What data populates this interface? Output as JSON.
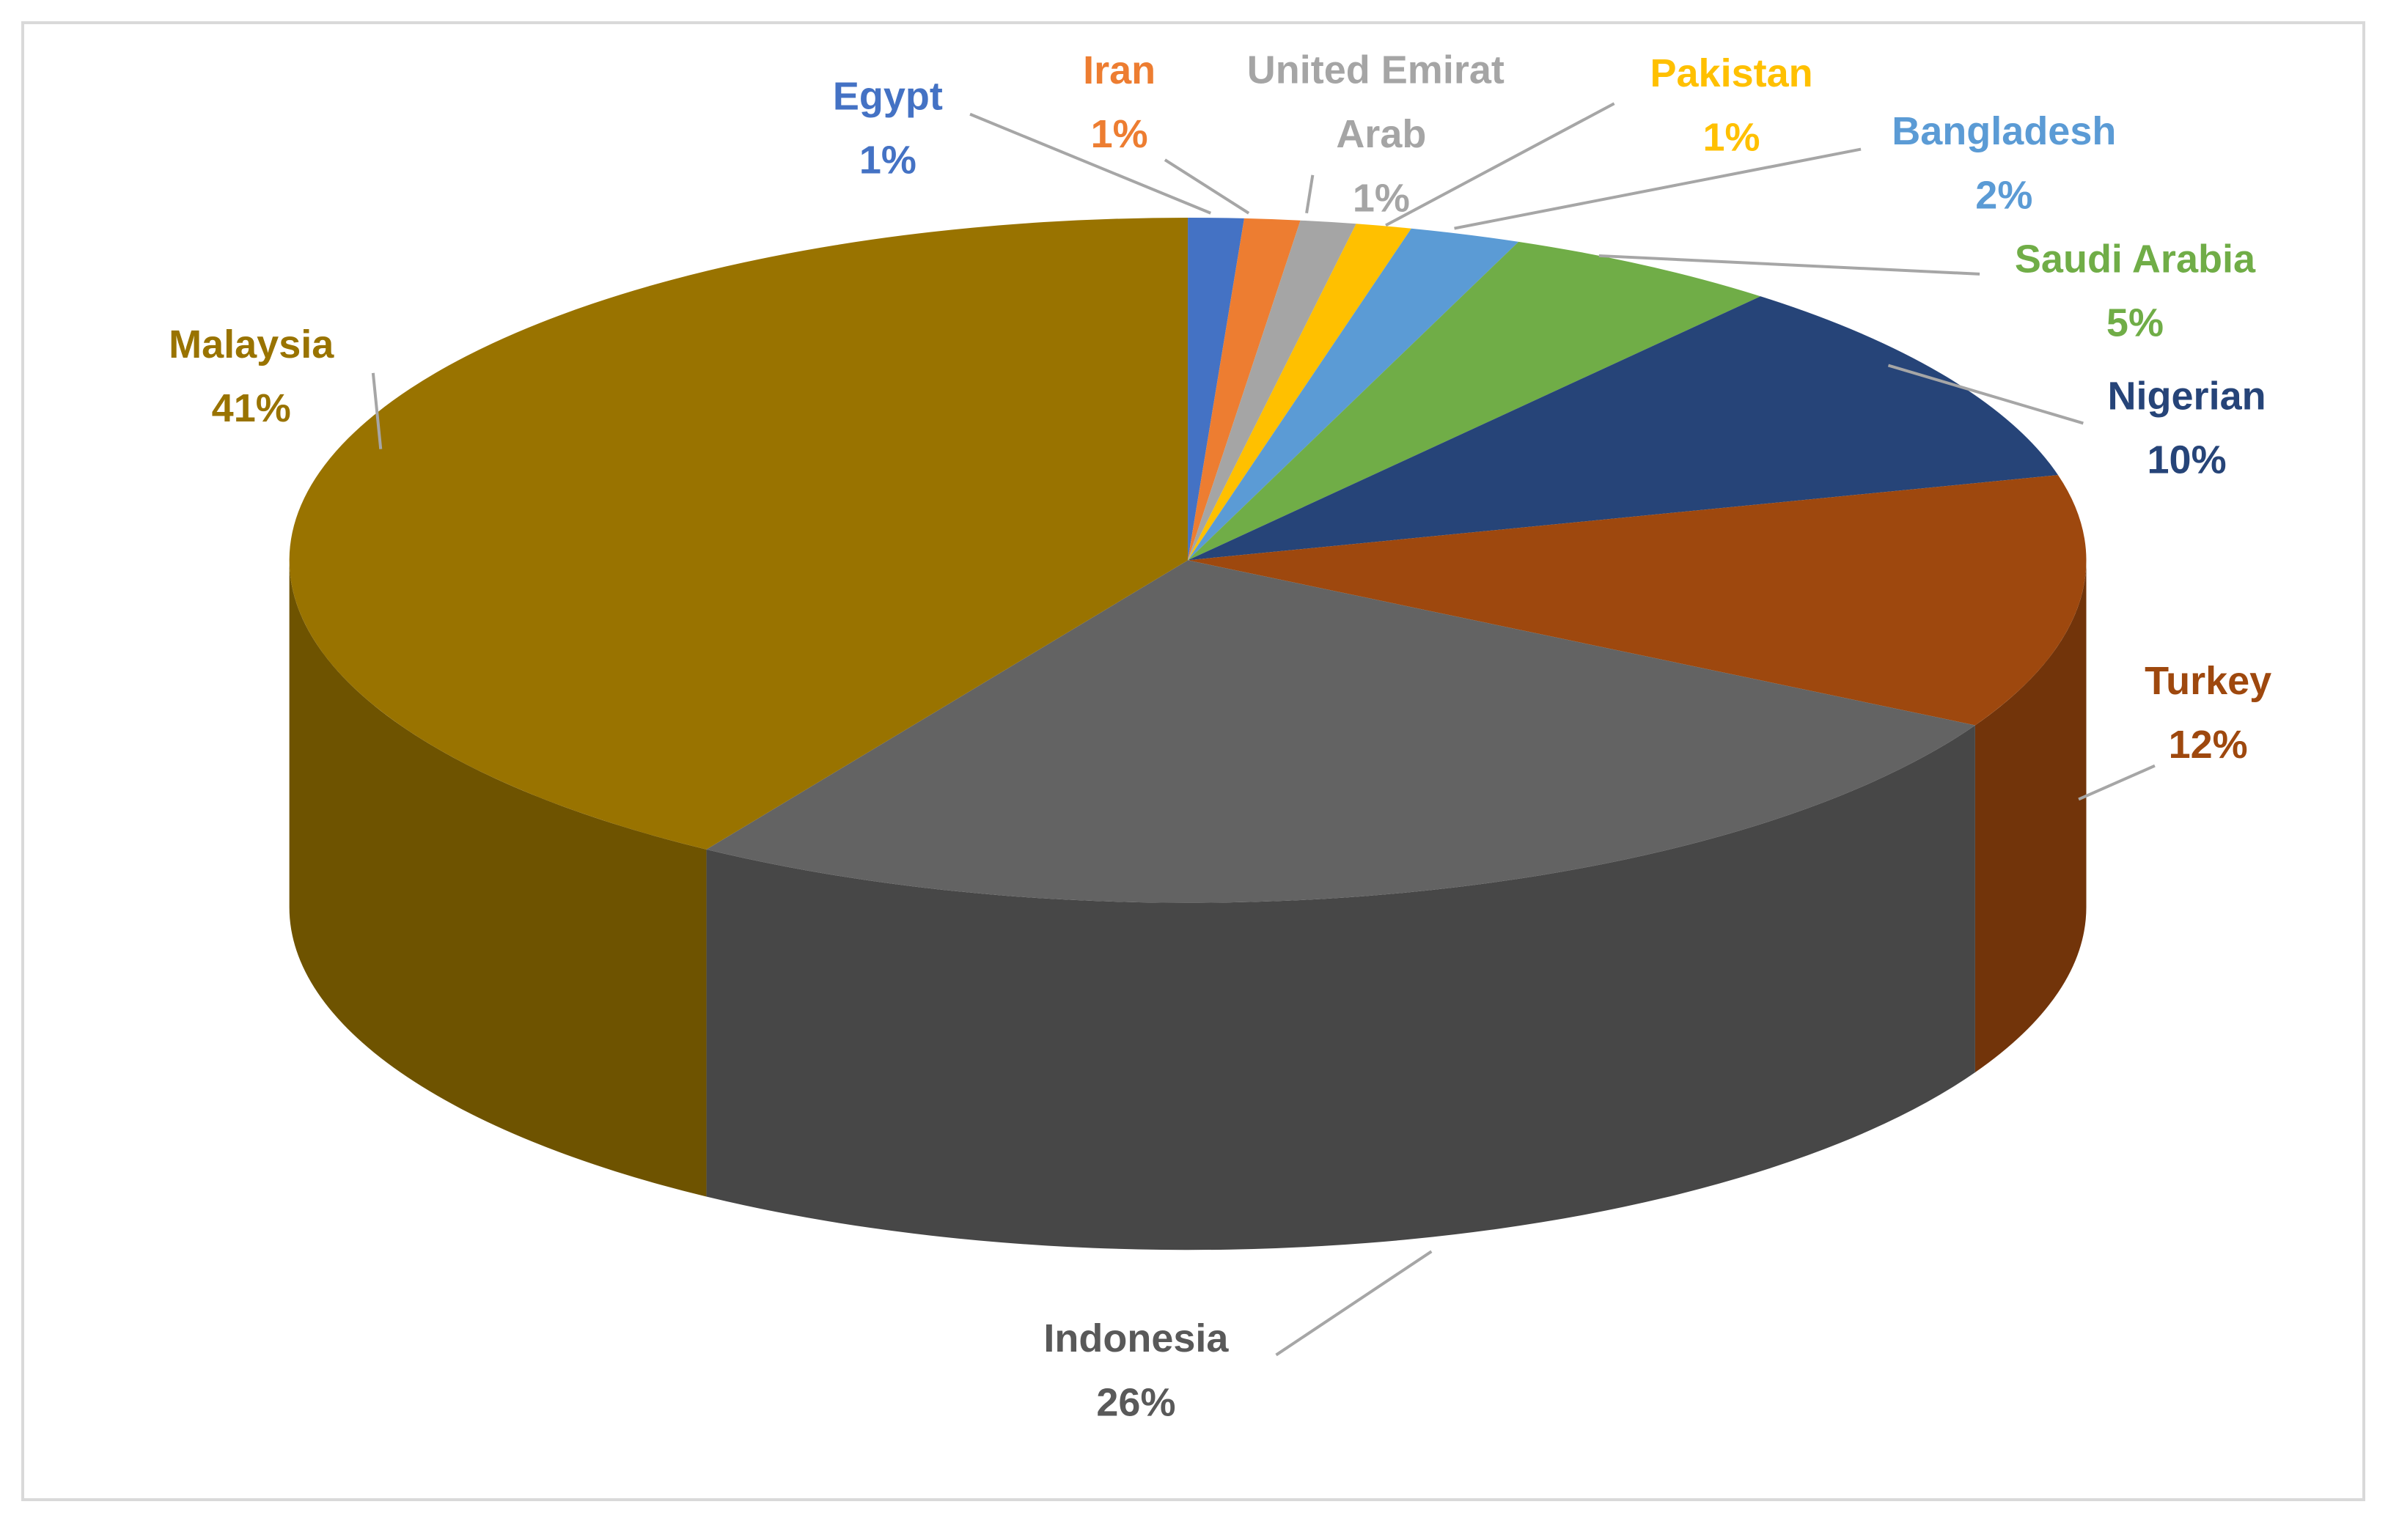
{
  "chart_data": {
    "type": "pie3d",
    "categories": [
      "Egypt",
      "Iran",
      "United Emirat Arab",
      "Pakistan",
      "Bangladesh",
      "Saudi Arabia",
      "Nigerian",
      "Turkey",
      "Indonesia",
      "Malaysia"
    ],
    "values": [
      1,
      1,
      1,
      1,
      2,
      5,
      10,
      12,
      26,
      41
    ],
    "value_labels": [
      "1%",
      "1%",
      "1%",
      "1%",
      "2%",
      "5%",
      "10%",
      "12%",
      "26%",
      "41%"
    ],
    "colors": [
      "#4472c4",
      "#ed7d31",
      "#a5a5a5",
      "#ffc000",
      "#5b9bd5",
      "#70ad47",
      "#264478",
      "#9e480e",
      "#636363",
      "#997300"
    ]
  }
}
